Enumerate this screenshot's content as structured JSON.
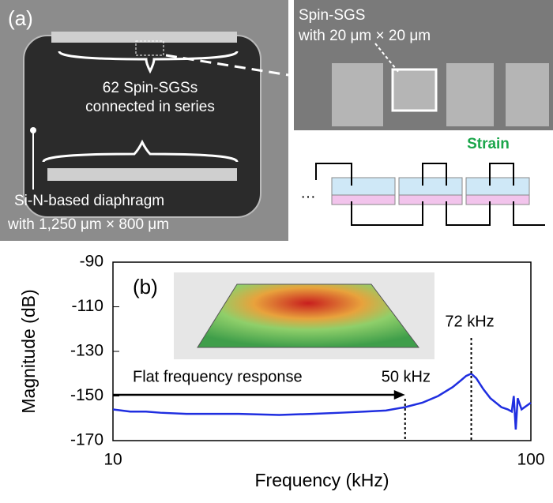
{
  "panel_a": {
    "label": "(a)",
    "zoom_title": "Spin-SGS",
    "zoom_size": "with 20 μm × 20 μm",
    "count": "62 Spin-SGSs",
    "count_note": "connected in series",
    "diaphragm": "Si-N-based diaphragm",
    "diaphragm_size": "with 1,250 μm × 800 μm",
    "strain": "Strain",
    "ellipsis": "…"
  },
  "chart_data": {
    "type": "line",
    "panel_label": "(b)",
    "xlabel": "Frequency (kHz)",
    "ylabel": "Magnitude (dB)",
    "log_x": true,
    "xlim": [
      10,
      100
    ],
    "xticks": [
      10,
      100
    ],
    "ylim": [
      -170,
      -90
    ],
    "yticks": [
      -90,
      -110,
      -130,
      -150,
      -170
    ],
    "x": [
      10,
      11,
      12,
      13,
      15,
      17,
      20,
      25,
      30,
      35,
      40,
      45,
      50,
      55,
      60,
      65,
      68,
      70,
      72,
      74,
      77,
      80,
      85,
      88,
      90,
      91,
      92,
      93,
      95,
      100
    ],
    "series": [
      {
        "color": "#1f2ee0",
        "values": [
          -156,
          -157,
          -157,
          -157.5,
          -158,
          -158,
          -158,
          -158.5,
          -158,
          -157.5,
          -157,
          -156.5,
          -155,
          -153,
          -150,
          -146,
          -143,
          -141,
          -140,
          -142,
          -147,
          -151,
          -155,
          -156,
          -157,
          -150,
          -165,
          -151,
          -156,
          -153
        ]
      }
    ],
    "markers": [
      {
        "x": 50,
        "label": "50 kHz"
      },
      {
        "x": 72,
        "label": "72 kHz"
      }
    ],
    "annotation": "Flat frequency response"
  }
}
